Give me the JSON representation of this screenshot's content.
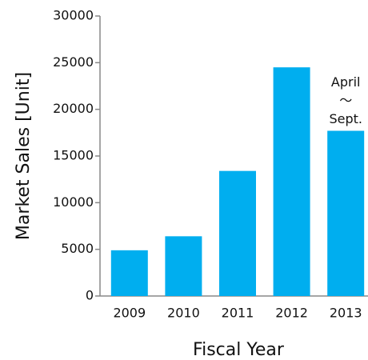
{
  "chart_data": {
    "type": "bar",
    "categories": [
      "2009",
      "2010",
      "2011",
      "2012",
      "2013"
    ],
    "values": [
      4900,
      6400,
      13400,
      24500,
      17700
    ],
    "color": "#00aeef",
    "ylim": [
      0,
      30000
    ],
    "yticks": [
      0,
      5000,
      10000,
      15000,
      20000,
      25000,
      30000
    ],
    "y_label": "Market Sales [Unit]",
    "x_label": "Fiscal Year",
    "annotation": {
      "category_index": 4,
      "lines": [
        "April",
        "～",
        "Sept."
      ]
    }
  }
}
